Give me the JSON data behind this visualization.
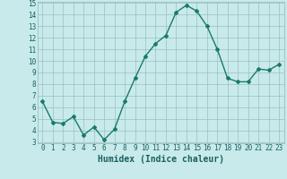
{
  "title": "",
  "xlabel": "Humidex (Indice chaleur)",
  "ylabel": "",
  "x": [
    0,
    1,
    2,
    3,
    4,
    5,
    6,
    7,
    8,
    9,
    10,
    11,
    12,
    13,
    14,
    15,
    16,
    17,
    18,
    19,
    20,
    21,
    22,
    23
  ],
  "y": [
    6.5,
    4.7,
    4.6,
    5.2,
    3.6,
    4.3,
    3.2,
    4.1,
    6.5,
    8.5,
    10.4,
    11.5,
    12.2,
    14.2,
    14.8,
    14.3,
    13.0,
    11.0,
    8.5,
    8.2,
    8.2,
    9.3,
    9.2,
    9.7
  ],
  "line_color": "#1a7a6a",
  "marker": "D",
  "marker_size": 2,
  "bg_color": "#c8eaea",
  "grid_color": "#9bbfbf",
  "ylim": [
    3,
    15
  ],
  "xlim_min": -0.5,
  "xlim_max": 23.5,
  "yticks": [
    3,
    4,
    5,
    6,
    7,
    8,
    9,
    10,
    11,
    12,
    13,
    14,
    15
  ],
  "xticks": [
    0,
    1,
    2,
    3,
    4,
    5,
    6,
    7,
    8,
    9,
    10,
    11,
    12,
    13,
    14,
    15,
    16,
    17,
    18,
    19,
    20,
    21,
    22,
    23
  ],
  "tick_label_fontsize": 5.5,
  "xlabel_fontsize": 7,
  "label_color": "#1a6060"
}
